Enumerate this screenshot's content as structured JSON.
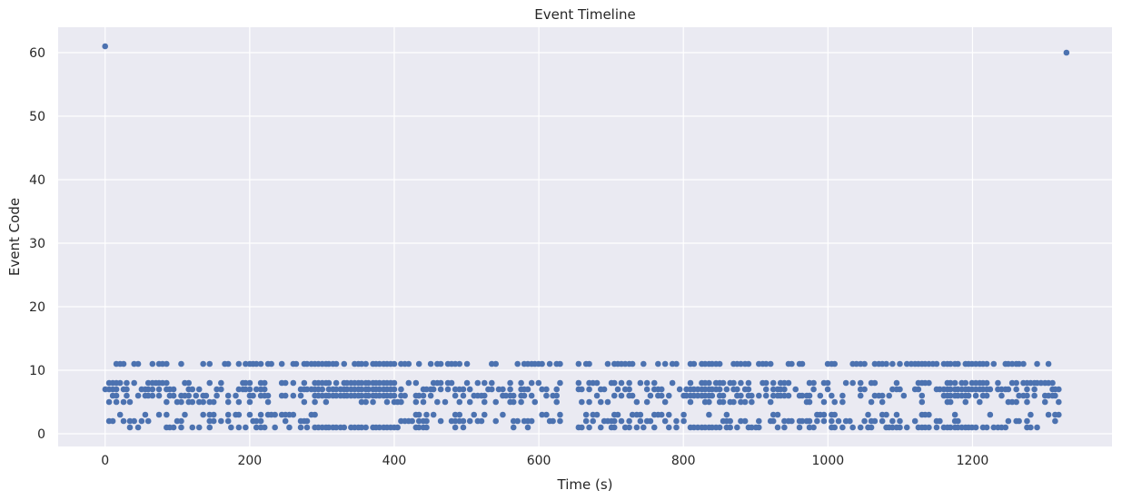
{
  "chart_data": {
    "type": "scatter",
    "title": "Event Timeline",
    "xlabel": "Time (s)",
    "ylabel": "Event Code",
    "xlim": [
      -65,
      1393
    ],
    "ylim": [
      -2,
      64
    ],
    "xticks": [
      0,
      200,
      400,
      600,
      800,
      1000,
      1200
    ],
    "yticks": [
      0,
      10,
      20,
      30,
      40,
      50,
      60
    ],
    "grid": true,
    "background_color": "#eaeaf2",
    "point_color": "#4c72b0",
    "gridline_color": "#ffffff",
    "outliers": [
      {
        "x": 0,
        "y": 61
      },
      {
        "x": 1330,
        "y": 60
      }
    ],
    "segments": [
      {
        "x_start": 0,
        "x_end": 630
      },
      {
        "x_start": 655,
        "x_end": 1320
      }
    ],
    "event_codes": [
      1,
      2,
      3,
      5,
      6,
      7,
      8,
      11
    ],
    "event_interval_s": 5,
    "dense_ranges": [
      [
        290,
        400
      ],
      [
        810,
        850
      ],
      [
        1160,
        1220
      ]
    ]
  }
}
